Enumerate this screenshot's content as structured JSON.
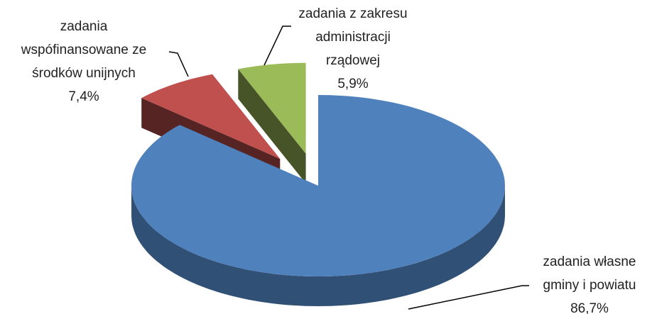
{
  "chart_data": {
    "type": "pie3d",
    "categories": [
      "zadania własne gminy i powiatu",
      "zadania wspófinansowane ze środków unijnych",
      "zadania z zakresu administracji rządowej"
    ],
    "values": [
      86.7,
      7.4,
      5.9
    ],
    "value_labels": [
      "86,7%",
      "7,4%",
      "5,9%"
    ],
    "colors": [
      "#4f81bd",
      "#c0504d",
      "#9bbb59"
    ]
  }
}
